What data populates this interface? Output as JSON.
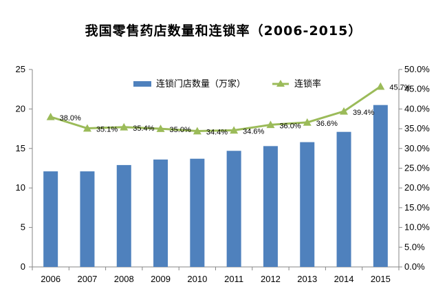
{
  "chart_data": {
    "type": "bar+line",
    "title": "我国零售药店数量和连锁率（2006-2015）",
    "categories": [
      "2006",
      "2007",
      "2008",
      "2009",
      "2010",
      "2011",
      "2012",
      "2013",
      "2014",
      "2015"
    ],
    "series": [
      {
        "name": "连锁门店数量（万家）",
        "type": "bar",
        "axis": "left",
        "values": [
          12.1,
          12.1,
          12.9,
          13.6,
          13.7,
          14.7,
          15.3,
          15.8,
          17.1,
          20.5
        ]
      },
      {
        "name": "连锁率",
        "type": "line",
        "axis": "right",
        "values": [
          38.0,
          35.1,
          35.4,
          35.0,
          34.4,
          34.6,
          36.0,
          36.6,
          39.4,
          45.7
        ],
        "labels": [
          "38.0%",
          "35.1%",
          "35.4%",
          "35.0%",
          "34.4%",
          "34.6%",
          "36.0%",
          "36.6%",
          "39.4%",
          "45.7%"
        ]
      }
    ],
    "y_left": {
      "range": [
        0,
        25
      ],
      "ticks": [
        "0",
        "5",
        "10",
        "15",
        "20",
        "25"
      ]
    },
    "y_right": {
      "range": [
        0,
        50
      ],
      "ticks": [
        "0.0%",
        "5.0%",
        "10.0%",
        "15.0%",
        "20.0%",
        "25.0%",
        "30.0%",
        "35.0%",
        "40.0%",
        "45.0%",
        "50.0%"
      ]
    },
    "legend_position": "top-center",
    "grid": false,
    "colors": {
      "bar": "#4f81bd",
      "line": "#9bbb59"
    }
  }
}
